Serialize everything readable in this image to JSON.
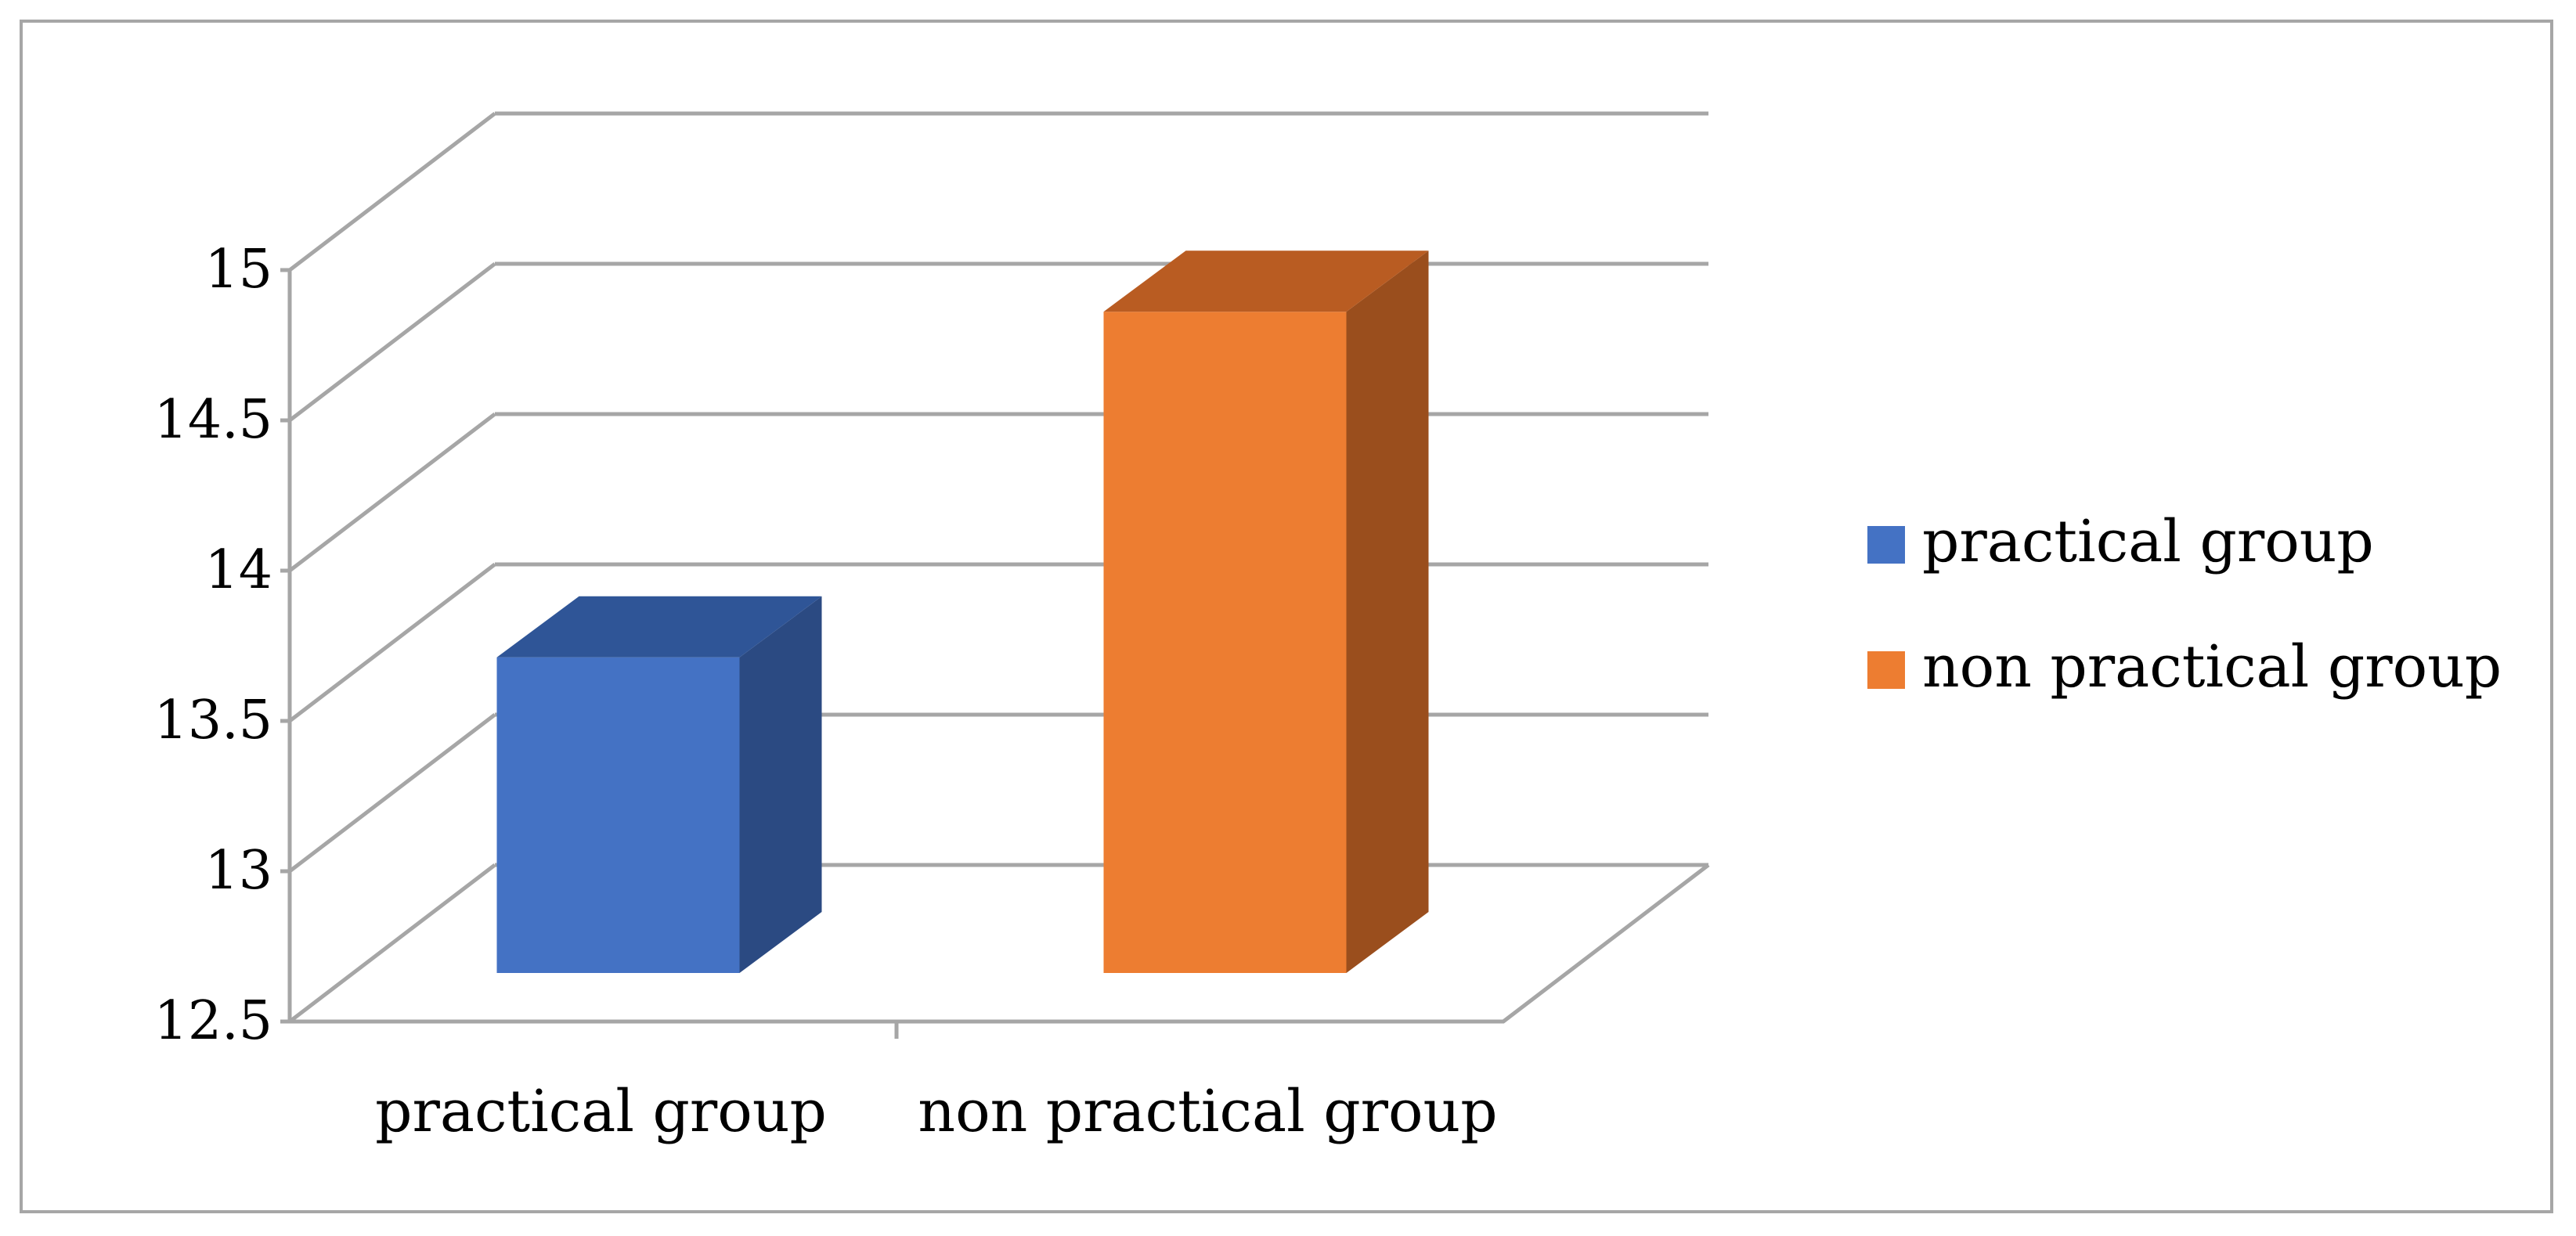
{
  "chart_data": {
    "type": "bar",
    "title": "",
    "xlabel": "",
    "ylabel": "",
    "categories": [
      "practical group",
      "non practical group"
    ],
    "series": [
      {
        "name": "practical group",
        "color": "#4472C4",
        "top_color": "#2F5597",
        "side_color": "#2B4A82",
        "values": [
          13.55,
          null
        ]
      },
      {
        "name": "non practical group",
        "color": "#ED7D31",
        "top_color": "#B95C22",
        "side_color": "#9A4E1D",
        "values": [
          null,
          14.7
        ]
      }
    ],
    "y_ticks": [
      "12.5",
      "13",
      "13.5",
      "14",
      "14.5",
      "15"
    ],
    "ylim": [
      12.5,
      15
    ],
    "grid": true,
    "legend_position": "right",
    "three_d": true
  }
}
